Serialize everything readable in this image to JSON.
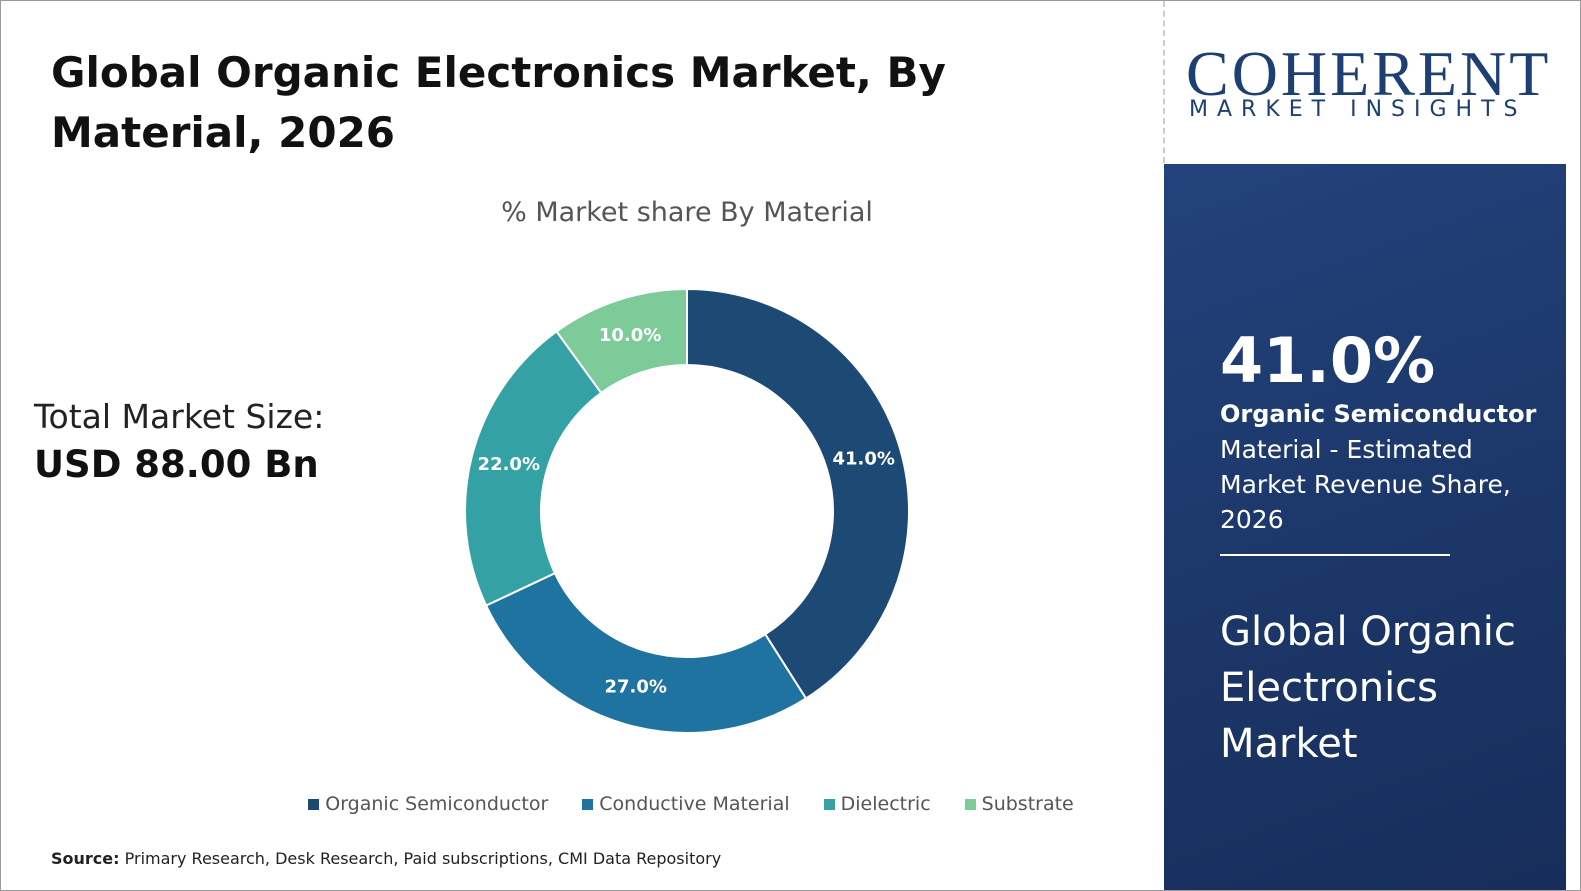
{
  "title": "Global Organic Electronics Market, By Material, 2026",
  "market_size": {
    "label": "Total Market Size:",
    "value": "USD 88.00 Bn"
  },
  "chart_data": {
    "type": "donut",
    "title": "% Market share By Material",
    "categories": [
      "Organic Semiconductor",
      "Conductive Material",
      "Dielectric",
      "Substrate"
    ],
    "values": [
      41,
      27,
      22,
      10
    ],
    "value_labels": [
      "41.0%",
      "27.0%",
      "22.0%",
      "10.0%"
    ],
    "colors": [
      "#1d4a75",
      "#1f73a0",
      "#34a1a4",
      "#7ccb98"
    ],
    "legend": "bottom"
  },
  "logo": {
    "name": "COHERENT",
    "tagline": "MARKET INSIGHTS"
  },
  "highlight": {
    "value": "41.0%",
    "segment": "Organic Semiconductor",
    "description": "Material - Estimated Market Revenue Share, 2026",
    "market": "Global Organic Electronics Market"
  },
  "source": {
    "label": "Source:",
    "text": "Primary Research, Desk Research, Paid subscriptions, CMI Data Repository"
  }
}
